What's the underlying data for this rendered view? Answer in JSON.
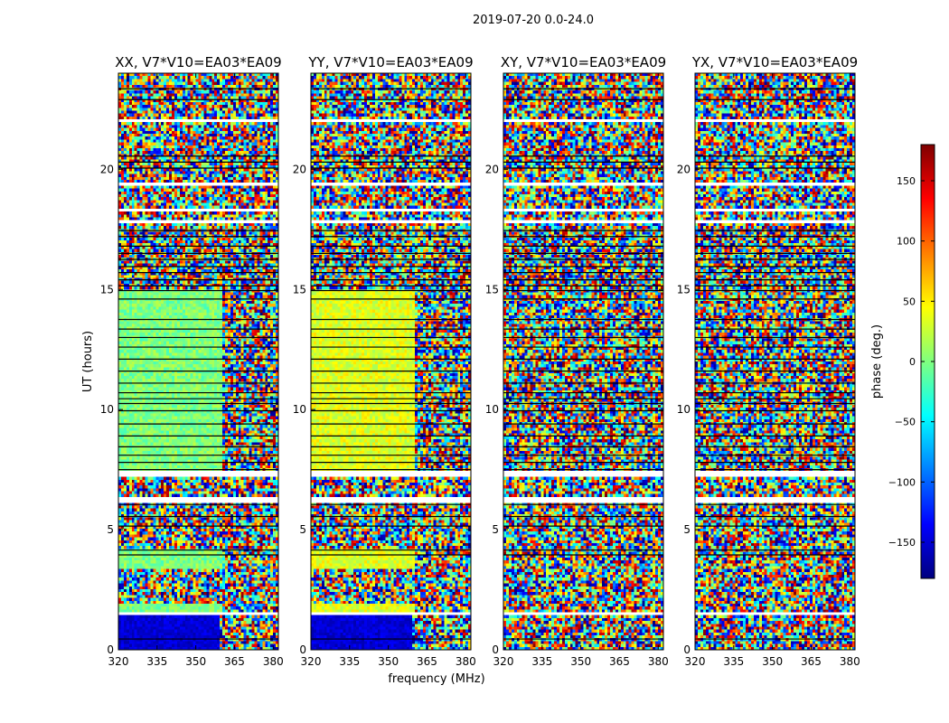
{
  "figure": {
    "suptitle": "2019-07-20 0.0-24.0"
  },
  "chart_data": {
    "type": "heatmap",
    "description_note": "",
    "xlabel": "frequency (MHz)",
    "ylabel": "UT (hours)",
    "xlim": [
      320,
      382
    ],
    "ylim": [
      0,
      24
    ],
    "xticks": [
      "320",
      "335",
      "350",
      "365",
      "380"
    ],
    "yticks": [
      "0",
      "5",
      "10",
      "15",
      "20"
    ],
    "colorbar": {
      "label": "phase (deg.)",
      "range": [
        -180,
        180
      ],
      "ticks": [
        "150",
        "100",
        "50",
        "0",
        "−50",
        "−100",
        "−150"
      ],
      "colormap": "jet",
      "colors": [
        "#00007f",
        "#0000ff",
        "#007fff",
        "#00ffff",
        "#7fff7f",
        "#ffff00",
        "#ff7f00",
        "#ff0000",
        "#7f0000"
      ]
    },
    "panels": [
      {
        "title": "XX, V7*V10=EA03*EA09",
        "coherent_phase": 0,
        "coherent_rows_hours": [
          [
            1.4,
            15.0
          ]
        ],
        "low_band_phase_hours": [
          [
            0.0,
            1.4
          ]
        ],
        "low_band_phase": -150
      },
      {
        "title": "YY, V7*V10=EA03*EA09",
        "coherent_phase": 35,
        "coherent_rows_hours": [
          [
            1.4,
            15.0
          ]
        ],
        "low_band_phase_hours": [
          [
            0.0,
            1.4
          ]
        ],
        "low_band_phase": -150
      },
      {
        "title": "XY, V7*V10=EA03*EA09",
        "coherent_phase": null,
        "coherent_rows_hours": [],
        "low_band_phase_hours": [],
        "low_band_phase": null
      },
      {
        "title": "YX, V7*V10=EA03*EA09",
        "coherent_phase": null,
        "coherent_rows_hours": [],
        "low_band_phase_hours": [],
        "low_band_phase": null
      }
    ],
    "blank_rows_hours": [
      [
        1.45,
        1.62
      ],
      [
        1.78,
        1.85
      ],
      [
        6.15,
        6.3
      ],
      [
        7.25,
        7.38
      ],
      [
        17.8,
        17.92
      ],
      [
        18.25,
        18.35
      ],
      [
        21.95,
        22.1
      ],
      [
        23.35,
        23.42
      ],
      [
        19.3,
        19.4
      ],
      [
        3.45,
        3.52
      ]
    ],
    "flag_lines_hours": [
      0.45,
      3.95,
      4.15,
      5.15,
      5.55,
      6.05,
      7.5,
      7.8,
      8.1,
      8.45,
      8.9,
      9.4,
      9.95,
      10.25,
      10.45,
      10.7,
      11.1,
      11.6,
      12.1,
      12.6,
      13.0,
      13.35,
      13.75,
      14.6,
      14.95,
      15.15,
      15.4,
      15.7,
      15.95,
      16.25,
      16.5,
      16.8,
      17.2,
      17.45,
      20.05,
      20.3,
      20.55,
      22.9,
      23.35
    ]
  }
}
